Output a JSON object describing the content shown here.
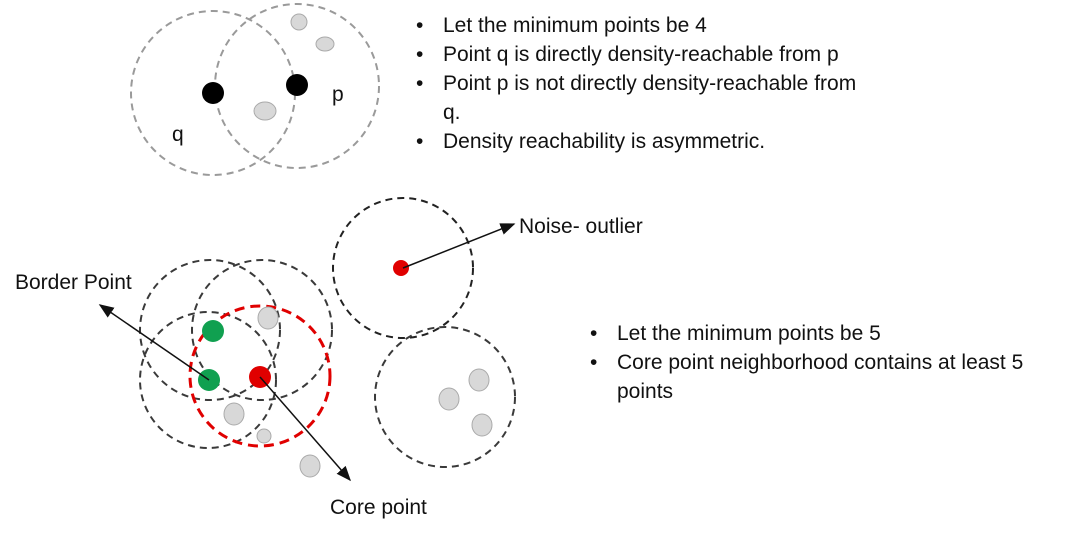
{
  "top": {
    "labels": {
      "q": "q",
      "p": "p"
    },
    "bullets": [
      "Let the minimum points be 4",
      "Point q is directly density-reachable from p",
      "Point p is not directly density-reachable from q.",
      "Density reachability is asymmetric."
    ]
  },
  "bottom": {
    "labels": {
      "noise": "Noise- outlier",
      "border": "Border Point",
      "core": "Core point"
    },
    "bullets": [
      "Let the minimum points be 5",
      "Core point neighborhood contains at least 5 points"
    ]
  },
  "colors": {
    "neighborhood_circle": "#9a9a9a",
    "neighborhood_circle_dark": "#3a3a3a",
    "core_circle": "#e00000",
    "core_point": "#e00000",
    "border_point": "#10a050",
    "plain_point": "#d8d8d8",
    "highlight_point": "#000000"
  }
}
